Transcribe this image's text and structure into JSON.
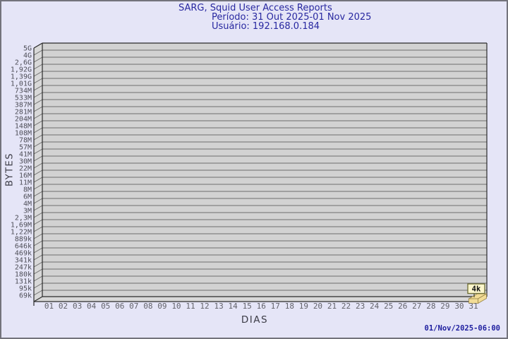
{
  "chart_data": {
    "type": "bar",
    "title": "SARG, Squid User Access Reports",
    "period": "Período: 31 Out 2025-01 Nov 2025",
    "user": "Usuário: 192.168.0.184",
    "xlabel": "DIAS",
    "ylabel": "BYTES",
    "y_scale": "logarithmic",
    "grid": true,
    "x_ticks": [
      "01",
      "02",
      "03",
      "04",
      "05",
      "06",
      "07",
      "08",
      "09",
      "10",
      "11",
      "12",
      "13",
      "14",
      "15",
      "16",
      "17",
      "18",
      "19",
      "20",
      "21",
      "22",
      "23",
      "24",
      "25",
      "26",
      "27",
      "28",
      "29",
      "30",
      "31"
    ],
    "y_ticks_top_to_bottom": [
      "5G",
      "4G",
      "2,6G",
      "1,92G",
      "1,39G",
      "1,01G",
      "734M",
      "533M",
      "387M",
      "281M",
      "204M",
      "148M",
      "108M",
      "78M",
      "57M",
      "41M",
      "30M",
      "22M",
      "16M",
      "11M",
      "8M",
      "6M",
      "4M",
      "3M",
      "2,3M",
      "1,69M",
      "1,22M",
      "889k",
      "646k",
      "469k",
      "341k",
      "247k",
      "180k",
      "131k",
      "95k",
      "69k"
    ],
    "bars": [
      {
        "day": "31",
        "value_label": "4k",
        "value_bytes": 4000
      }
    ],
    "footer_timestamp": "01/Nov/2025-06:00",
    "colors": {
      "page_background": "#e5e5f7",
      "frame_border": "#73737c",
      "plot_background": "#d2d2d2",
      "wall_background": "#d8d8d8",
      "gridline": "#6f6f6f",
      "axis_line": "#2b2b2b",
      "title_text": "#2828a0",
      "y_tick_text": "#4e4e58",
      "x_tick_text": "#62626a",
      "axis_label_text": "#3c3c46",
      "bar_fill": "#f2dc96",
      "bar_edge": "#9a8648",
      "callout_fill": "#fcf6cc",
      "callout_border": "#6b6b33",
      "callout_text": "#111111",
      "timestamp_text": "#2020a0"
    }
  }
}
